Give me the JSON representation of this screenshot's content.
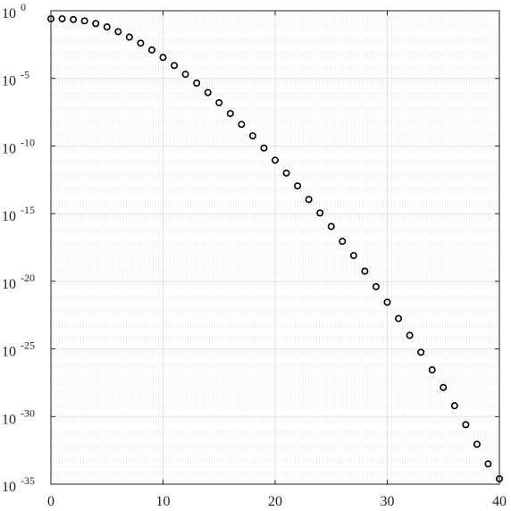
{
  "chart_data": {
    "type": "scatter",
    "title": "",
    "xlabel": "",
    "ylabel": "",
    "xlim": [
      0,
      40
    ],
    "ylim": [
      -35,
      0
    ],
    "y_scale": "log",
    "grid": true,
    "minor_grid": true,
    "marker": "open-circle",
    "colors": {
      "marker": "#000000",
      "axis": "#222222",
      "grid": "#e4e4e4",
      "minor_grid": "#f0f0f0"
    },
    "x_ticks": [
      {
        "value": 0,
        "label": "0"
      },
      {
        "value": 10,
        "label": "10"
      },
      {
        "value": 20,
        "label": "20"
      },
      {
        "value": 30,
        "label": "30"
      },
      {
        "value": 40,
        "label": "40"
      }
    ],
    "y_ticks": [
      {
        "value": 0,
        "base": "10",
        "exp": "0"
      },
      {
        "value": -5,
        "base": "10",
        "exp": "-5"
      },
      {
        "value": -10,
        "base": "10",
        "exp": "-10"
      },
      {
        "value": -15,
        "base": "10",
        "exp": "-15"
      },
      {
        "value": -20,
        "base": "10",
        "exp": "-20"
      },
      {
        "value": -25,
        "base": "10",
        "exp": "-25"
      },
      {
        "value": -30,
        "base": "10",
        "exp": "-30"
      },
      {
        "value": -35,
        "base": "10",
        "exp": "-35"
      }
    ],
    "x": [
      0,
      1,
      2,
      3,
      4,
      5,
      6,
      7,
      8,
      9,
      10,
      11,
      12,
      13,
      14,
      15,
      16,
      17,
      18,
      19,
      20,
      21,
      22,
      23,
      24,
      25,
      26,
      27,
      28,
      29,
      30,
      31,
      32,
      33,
      34,
      35,
      36,
      37,
      38,
      39,
      40
    ],
    "log10_y": [
      -0.6,
      -0.6,
      -0.65,
      -0.75,
      -0.95,
      -1.2,
      -1.55,
      -1.95,
      -2.4,
      -2.9,
      -3.45,
      -4.05,
      -4.7,
      -5.35,
      -6.05,
      -6.8,
      -7.6,
      -8.4,
      -9.25,
      -10.15,
      -11.05,
      -12.0,
      -12.95,
      -13.95,
      -14.95,
      -15.95,
      -17.05,
      -18.1,
      -19.25,
      -20.4,
      -21.55,
      -22.75,
      -24.0,
      -25.25,
      -26.55,
      -27.85,
      -29.2,
      -30.6,
      -32.05,
      -33.5,
      -34.6
    ]
  }
}
